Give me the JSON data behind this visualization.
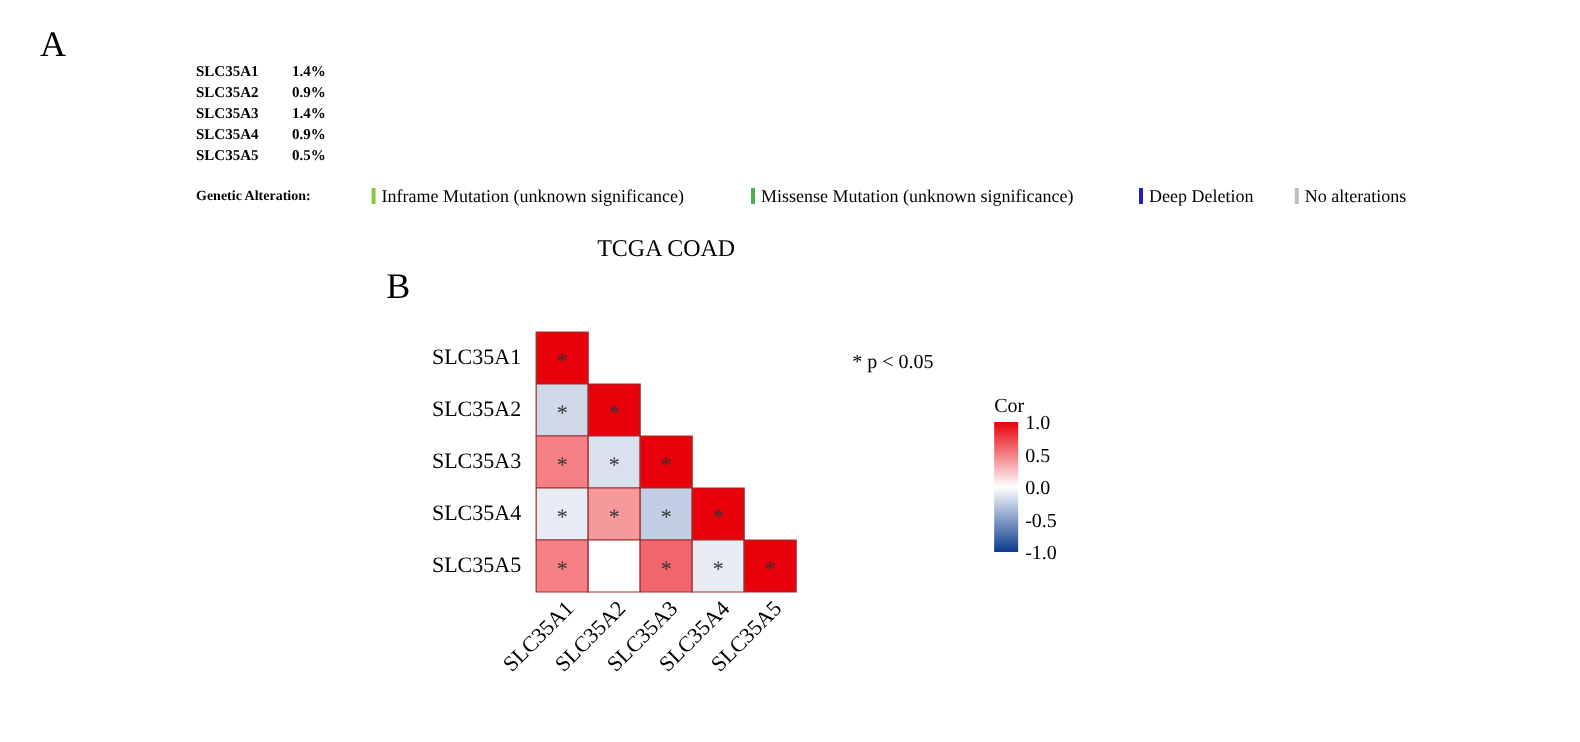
{
  "chart_data": [
    {
      "type": "other",
      "annotations": [
        "A"
      ],
      "categories": [
        "SLC35A1",
        "SLC35A2",
        "SLC35A3",
        "SLC35A4",
        "SLC35A5"
      ],
      "value_labels": [
        "1.4%",
        "0.9%",
        "1.4%",
        "0.9%",
        "0.5%"
      ],
      "legend_title": "Genetic Alteration:",
      "legend": "bottom",
      "series": [
        {
          "name": "Inframe Mutation (unknown significance)",
          "color": "#8cc63f",
          "values": [
            null,
            null,
            null,
            null,
            null
          ]
        },
        {
          "name": "Missense Mutation (unknown significance)",
          "color": "#4caf50",
          "values": [
            null,
            null,
            null,
            null,
            null
          ]
        },
        {
          "name": "Deep Deletion",
          "color": "#1f1fc8",
          "values": [
            null,
            null,
            null,
            null,
            null
          ]
        },
        {
          "name": "No alterations",
          "color": "#bdbdbd",
          "values": [
            null,
            null,
            null,
            null,
            null
          ]
        }
      ]
    },
    {
      "type": "heatmap",
      "title": "TCGA COAD",
      "annotations": [
        "B",
        "* p < 0.05"
      ],
      "categories": [
        "SLC35A1",
        "SLC35A2",
        "SLC35A3",
        "SLC35A4",
        "SLC35A5"
      ],
      "y_categories": [
        "SLC35A1",
        "SLC35A2",
        "SLC35A3",
        "SLC35A4",
        "SLC35A5"
      ],
      "cells": [
        [
          1.0,
          null,
          null,
          null,
          null
        ],
        [
          -0.2,
          1.0,
          null,
          null,
          null
        ],
        [
          0.5,
          -0.15,
          1.0,
          null,
          null
        ],
        [
          -0.1,
          0.4,
          -0.25,
          1.0,
          null
        ],
        [
          0.5,
          0.0,
          0.6,
          -0.1,
          1.0
        ]
      ],
      "cell_labels": [
        [
          "*",
          null,
          null,
          null,
          null
        ],
        [
          "*",
          "*",
          null,
          null,
          null
        ],
        [
          "*",
          "*",
          "*",
          null,
          null
        ],
        [
          "*",
          "*",
          "*",
          "*",
          null
        ],
        [
          "*",
          null,
          "*",
          "*",
          "*"
        ]
      ],
      "clabel": "Cor",
      "clim": [
        -1,
        1
      ],
      "cticks": [
        {
          "value": 1,
          "label": "1.0"
        },
        {
          "value": 0.5,
          "label": "0.5"
        },
        {
          "value": 0,
          "label": "0.0"
        },
        {
          "value": -0.5,
          "label": "-0.5"
        },
        {
          "value": -1,
          "label": "-1.0"
        }
      ]
    }
  ]
}
